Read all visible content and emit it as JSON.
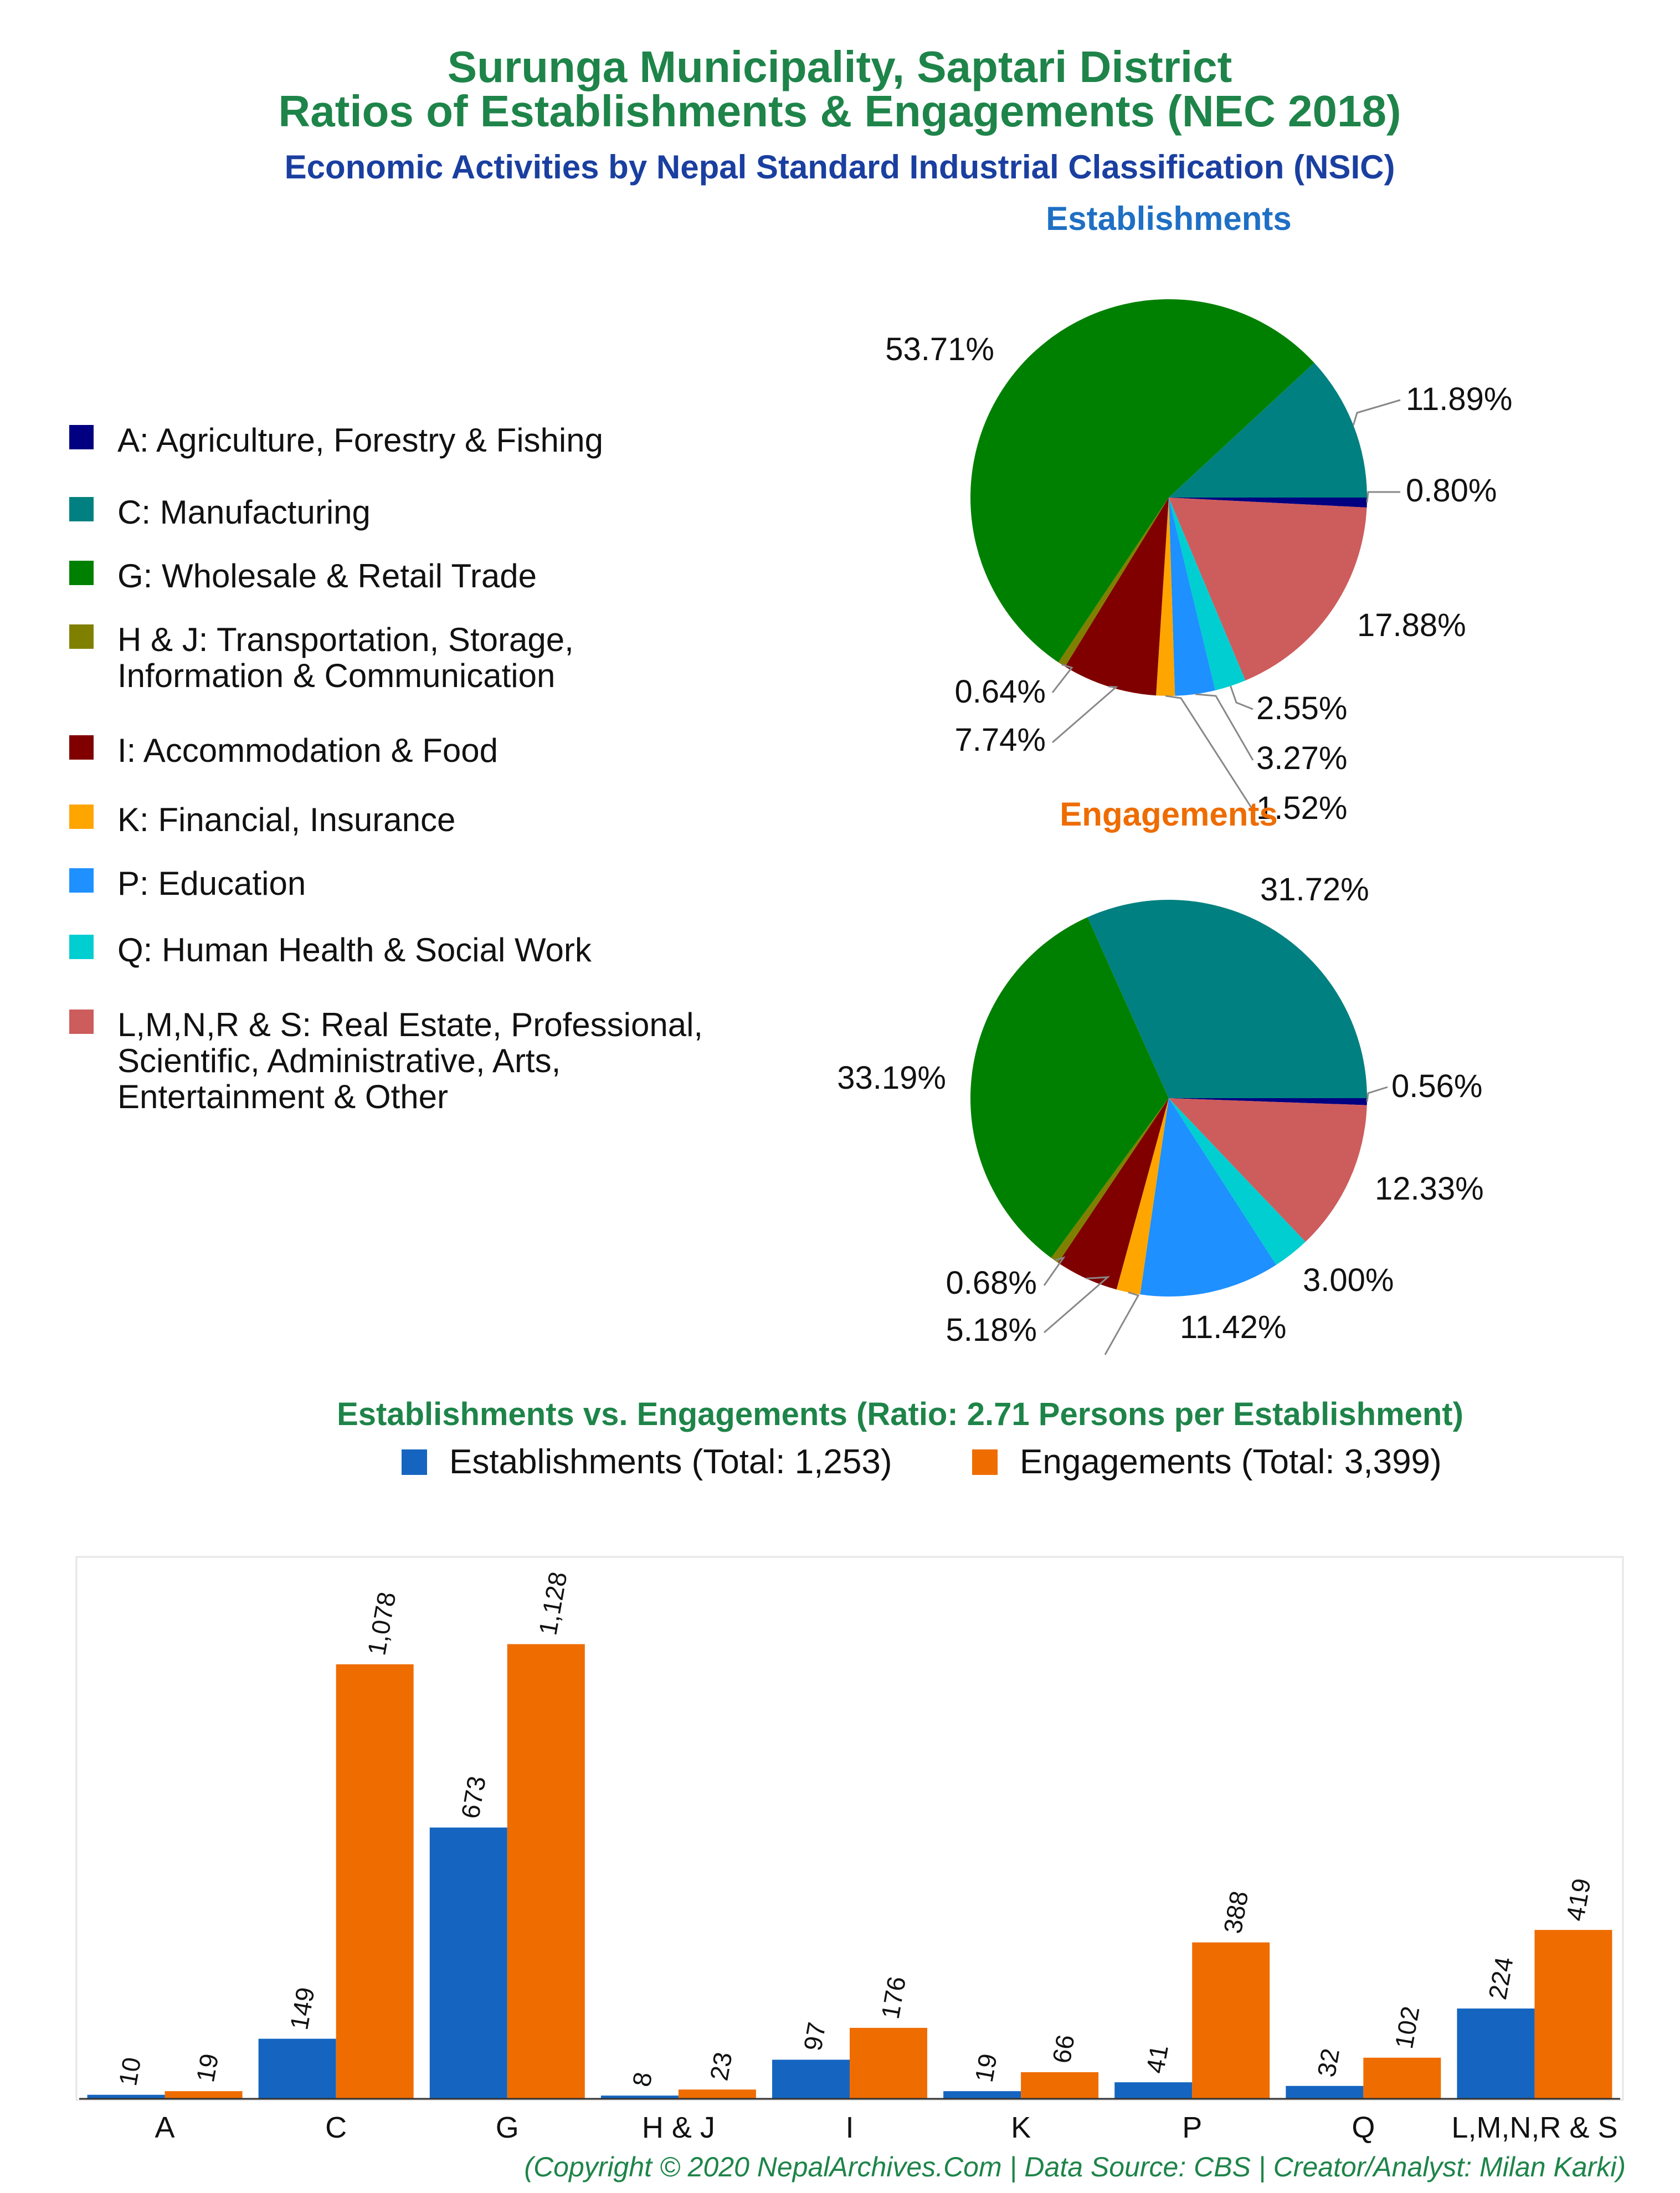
{
  "header": {
    "title_line1": "Surunga Municipality, Saptari District",
    "title_line2": "Ratios of Establishments & Engagements (NEC 2018)",
    "subtitle": "Economic Activities by Nepal Standard Industrial Classification (NSIC)"
  },
  "colors": {
    "title": "#1e8449",
    "subtitle": "#1a3fa0",
    "establishments_title": "#1f6fc4",
    "engagements_title": "#ee6c00",
    "bar_establishments": "#1565c0",
    "bar_engagements": "#ef6c00",
    "footer": "#1e8449"
  },
  "legend": [
    {
      "label": "A: Agriculture, Forestry & Fishing",
      "color": "#000080"
    },
    {
      "label": "C: Manufacturing",
      "color": "#008080"
    },
    {
      "label": "G: Wholesale & Retail Trade",
      "color": "#008000"
    },
    {
      "label": "H & J: Transportation, Storage,",
      "label2": "Information & Communication",
      "color": "#808000"
    },
    {
      "label": "I: Accommodation & Food",
      "color": "#800000"
    },
    {
      "label": "K: Financial, Insurance",
      "color": "#ffa500"
    },
    {
      "label": "P: Education",
      "color": "#1e90ff"
    },
    {
      "label": "Q: Human Health & Social Work",
      "color": "#00ced1"
    },
    {
      "label": "L,M,N,R & S: Real Estate, Professional,",
      "label2": "Scientific, Administrative, Arts,",
      "label3": "Entertainment & Other",
      "color": "#cd5c5c"
    }
  ],
  "chart_data": [
    {
      "type": "pie",
      "title": "Establishments",
      "slices": [
        {
          "key": "A",
          "value": 0.8,
          "label": "0.80%",
          "color": "#000080"
        },
        {
          "key": "L,M,N,R & S",
          "value": 17.88,
          "label": "17.88%",
          "color": "#cd5c5c"
        },
        {
          "key": "Q",
          "value": 2.55,
          "label": "2.55%",
          "color": "#00ced1"
        },
        {
          "key": "P",
          "value": 3.27,
          "label": "3.27%",
          "color": "#1e90ff"
        },
        {
          "key": "K",
          "value": 1.52,
          "label": "1.52%",
          "color": "#ffa500"
        },
        {
          "key": "I",
          "value": 7.74,
          "label": "7.74%",
          "color": "#800000"
        },
        {
          "key": "H & J",
          "value": 0.64,
          "label": "0.64%",
          "color": "#808000"
        },
        {
          "key": "G",
          "value": 53.71,
          "label": "53.71%",
          "color": "#008000"
        },
        {
          "key": "C",
          "value": 11.89,
          "label": "11.89%",
          "color": "#008080"
        }
      ]
    },
    {
      "type": "pie",
      "title": "Engagements",
      "slices": [
        {
          "key": "A",
          "value": 0.56,
          "label": "0.56%",
          "color": "#000080"
        },
        {
          "key": "L,M,N,R & S",
          "value": 12.33,
          "label": "12.33%",
          "color": "#cd5c5c"
        },
        {
          "key": "Q",
          "value": 3.0,
          "label": "3.00%",
          "color": "#00ced1"
        },
        {
          "key": "P",
          "value": 11.42,
          "label": "11.42%",
          "color": "#1e90ff"
        },
        {
          "key": "K",
          "value": 1.94,
          "label": "",
          "color": "#ffa500"
        },
        {
          "key": "I",
          "value": 5.18,
          "label": "5.18%",
          "color": "#800000"
        },
        {
          "key": "H & J",
          "value": 0.68,
          "label": "0.68%",
          "color": "#808000"
        },
        {
          "key": "G",
          "value": 33.19,
          "label": "33.19%",
          "color": "#008000"
        },
        {
          "key": "C",
          "value": 31.72,
          "label": "31.72%",
          "color": "#008080"
        }
      ]
    },
    {
      "type": "bar",
      "title": "Establishments vs. Engagements (Ratio: 2.71 Persons per Establishment)",
      "categories": [
        "A",
        "C",
        "G",
        "H & J",
        "I",
        "K",
        "P",
        "Q",
        "L,M,N,R & S"
      ],
      "series": [
        {
          "name": "Establishments (Total: 1,253)",
          "values": [
            10,
            149,
            673,
            8,
            97,
            19,
            41,
            32,
            224
          ],
          "labels": [
            "10",
            "149",
            "673",
            "8",
            "97",
            "19",
            "41",
            "32",
            "224"
          ]
        },
        {
          "name": "Engagements (Total: 3,399)",
          "values": [
            19,
            1078,
            1128,
            23,
            176,
            66,
            388,
            102,
            419
          ],
          "labels": [
            "19",
            "1,078",
            "1,128",
            "23",
            "176",
            "66",
            "388",
            "102",
            "419"
          ]
        }
      ],
      "ylim": [
        0,
        1400
      ]
    }
  ],
  "footer": "(Copyright © 2020 NepalArchives.Com | Data Source: CBS | Creator/Analyst: Milan Karki)"
}
